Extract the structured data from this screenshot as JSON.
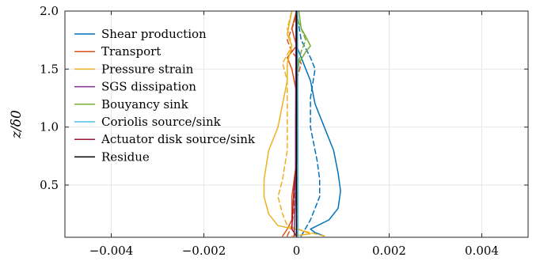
{
  "chart_data": {
    "type": "line",
    "title": "",
    "xlabel": "",
    "ylabel": "z/δ0",
    "xlim": [
      -0.005,
      0.005
    ],
    "ylim": [
      0.05,
      2.0
    ],
    "xticks": [
      -0.004,
      -0.002,
      0,
      0.002,
      0.004
    ],
    "xtick_labels": [
      "−0.004",
      "−0.002",
      "0",
      "0.002",
      "0.004"
    ],
    "yticks": [
      0.5,
      1.0,
      1.5,
      2.0
    ],
    "ytick_labels": [
      "0.5",
      "1.0",
      "1.5",
      "2.0"
    ],
    "grid": true,
    "legend": "top-left",
    "legend_entries": [
      "Shear production",
      "Transport",
      "Pressure strain",
      "SGS dissipation",
      "Bouyancy sink",
      "Coriolis source/sink",
      "Actuator disk source/sink",
      "Residue"
    ],
    "series": [
      {
        "name": "Shear production",
        "color": "#0072bd",
        "style": "solid",
        "points": [
          [
            0.0006,
            0.06
          ],
          [
            0.0004,
            0.09
          ],
          [
            0.0003,
            0.12
          ],
          [
            0.0007,
            0.2
          ],
          [
            0.0009,
            0.3
          ],
          [
            0.00095,
            0.45
          ],
          [
            0.0009,
            0.6
          ],
          [
            0.0008,
            0.8
          ],
          [
            0.0006,
            1.0
          ],
          [
            0.0004,
            1.2
          ],
          [
            0.0003,
            1.4
          ],
          [
            0.0002,
            1.5
          ],
          [
            0.0001,
            1.6
          ],
          [
            0.0,
            1.7
          ],
          [
            0.0,
            2.0
          ]
        ]
      },
      {
        "name": "Shear production (dashed)",
        "color": "#0072bd",
        "style": "dashed",
        "points": [
          [
            0.0001,
            0.06
          ],
          [
            0.0003,
            0.2
          ],
          [
            0.0005,
            0.4
          ],
          [
            0.0005,
            0.55
          ],
          [
            0.00045,
            0.7
          ],
          [
            0.0003,
            1.0
          ],
          [
            0.0003,
            1.25
          ],
          [
            0.0004,
            1.5
          ],
          [
            0.0003,
            1.6
          ],
          [
            0.0001,
            1.75
          ],
          [
            0.0,
            2.0
          ]
        ]
      },
      {
        "name": "Transport",
        "color": "#d95319",
        "style": "solid",
        "points": [
          [
            -0.0003,
            0.06
          ],
          [
            -0.0002,
            0.12
          ],
          [
            -0.0001,
            0.2
          ],
          [
            -0.0001,
            0.4
          ],
          [
            0.0,
            0.7
          ],
          [
            0.0,
            1.3
          ],
          [
            -0.0001,
            1.5
          ],
          [
            -0.0002,
            1.6
          ],
          [
            0.0,
            1.7
          ],
          [
            -0.0001,
            1.85
          ],
          [
            0.0,
            2.0
          ]
        ]
      },
      {
        "name": "Transport (dashed)",
        "color": "#d95319",
        "style": "dashed",
        "points": [
          [
            -0.0002,
            0.06
          ],
          [
            -0.0001,
            0.15
          ],
          [
            -5e-05,
            0.3
          ],
          [
            0.0,
            0.8
          ],
          [
            0.0,
            1.4
          ],
          [
            0.0001,
            1.55
          ],
          [
            -0.0001,
            1.65
          ],
          [
            -0.0002,
            1.75
          ],
          [
            -5e-05,
            1.9
          ],
          [
            0.0,
            2.0
          ]
        ]
      },
      {
        "name": "Pressure strain",
        "color": "#edb120",
        "style": "solid",
        "points": [
          [
            -0.0001,
            0.06
          ],
          [
            0.0003,
            0.08
          ],
          [
            0.0001,
            0.11
          ],
          [
            -0.0004,
            0.15
          ],
          [
            -0.0006,
            0.25
          ],
          [
            -0.0007,
            0.4
          ],
          [
            -0.0007,
            0.55
          ],
          [
            -0.0006,
            0.8
          ],
          [
            -0.0004,
            1.0
          ],
          [
            -0.0003,
            1.2
          ],
          [
            -0.0002,
            1.4
          ],
          [
            -0.0002,
            1.55
          ],
          [
            -0.0001,
            1.7
          ],
          [
            -0.0002,
            1.8
          ],
          [
            -0.0001,
            2.0
          ]
        ]
      },
      {
        "name": "Pressure strain (dashed)",
        "color": "#edb120",
        "style": "dashed",
        "points": [
          [
            0.0006,
            0.06
          ],
          [
            0.0002,
            0.1
          ],
          [
            -0.0002,
            0.15
          ],
          [
            -0.0003,
            0.25
          ],
          [
            -0.0004,
            0.4
          ],
          [
            -0.0003,
            0.55
          ],
          [
            -0.0002,
            0.8
          ],
          [
            -0.0002,
            1.1
          ],
          [
            -0.0002,
            1.4
          ],
          [
            -0.0003,
            1.55
          ],
          [
            -0.0001,
            1.7
          ],
          [
            -0.0002,
            1.85
          ],
          [
            -0.0001,
            2.0
          ]
        ]
      },
      {
        "name": "SGS dissipation",
        "color": "#7e2f8e",
        "style": "solid",
        "points": [
          [
            -5e-05,
            0.06
          ],
          [
            -2e-05,
            0.5
          ],
          [
            -2e-05,
            1.0
          ],
          [
            -1e-05,
            2.0
          ]
        ]
      },
      {
        "name": "Bouyancy sink",
        "color": "#77ac30",
        "style": "solid",
        "points": [
          [
            0.0,
            0.06
          ],
          [
            0.0,
            1.4
          ],
          [
            5e-05,
            1.55
          ],
          [
            0.0002,
            1.65
          ],
          [
            0.0003,
            1.7
          ],
          [
            0.0002,
            1.78
          ],
          [
            0.0001,
            1.85
          ],
          [
            5e-05,
            2.0
          ]
        ]
      },
      {
        "name": "Bouyancy sink (dashed)",
        "color": "#77ac30",
        "style": "dashed",
        "points": [
          [
            0.0,
            0.06
          ],
          [
            0.0,
            1.5
          ],
          [
            0.0001,
            1.65
          ],
          [
            0.0002,
            1.75
          ],
          [
            5e-05,
            1.9
          ],
          [
            0.0,
            2.0
          ]
        ]
      },
      {
        "name": "Coriolis source/sink",
        "color": "#4dbeee",
        "style": "solid",
        "points": [
          [
            3e-05,
            0.06
          ],
          [
            3e-05,
            1.0
          ],
          [
            2e-05,
            2.0
          ]
        ]
      },
      {
        "name": "Actuator disk source/sink",
        "color": "#a2142f",
        "style": "solid",
        "points": [
          [
            0.0,
            0.06
          ],
          [
            -0.0001,
            0.12
          ],
          [
            -8e-05,
            0.3
          ],
          [
            -5e-05,
            0.5
          ],
          [
            0.0,
            0.7
          ],
          [
            0.0,
            2.0
          ]
        ]
      },
      {
        "name": "Residue",
        "color": "#000000",
        "style": "solid",
        "points": [
          [
            0.0,
            0.06
          ],
          [
            0.0,
            2.0
          ]
        ]
      }
    ]
  }
}
